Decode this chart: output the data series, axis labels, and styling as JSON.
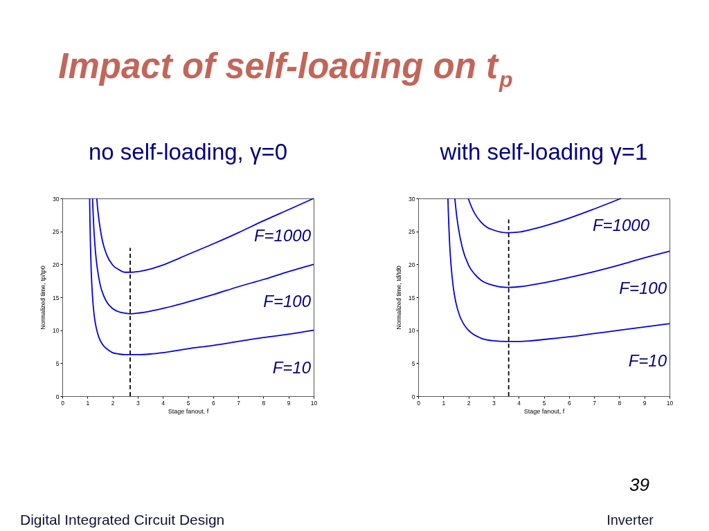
{
  "chart_data": [
    {
      "type": "other",
      "title": "Impact of self-loading on t$_{p}$",
      "annotations": [
        "39",
        "Digital Integrated Circuit Design",
        "Inverter"
      ]
    },
    {
      "type": "line",
      "title": "no self-loading, γ=0",
      "xlabel": "Stage fanout, f",
      "ylabel": "Normalized time, tp/tp0",
      "xlim": [
        0,
        10
      ],
      "ylim": [
        0,
        30
      ],
      "xticks": [
        0,
        1,
        2,
        3,
        4,
        5,
        6,
        7,
        8,
        9,
        10
      ],
      "yticks": [
        0,
        5,
        10,
        15,
        20,
        25,
        30
      ],
      "line_style": "solid",
      "series": [
        {
          "name": "F=1000",
          "color": "#0000e0",
          "x": [
            1.371,
            1.4,
            1.45,
            1.5,
            1.6,
            1.75,
            2,
            2.25,
            2.5,
            2.72,
            3,
            3.5,
            4,
            5,
            6,
            7,
            8,
            9,
            10
          ],
          "values": [
            30.0,
            28.7,
            27.0,
            25.6,
            23.5,
            21.6,
            19.9,
            19.2,
            18.8,
            18.8,
            18.9,
            19.3,
            19.9,
            21.5,
            23.1,
            24.8,
            26.6,
            28.3,
            30.0
          ]
        },
        {
          "name": "F=100",
          "color": "#0000e0",
          "x": [
            1.203,
            1.22,
            1.25,
            1.3,
            1.35,
            1.4,
            1.5,
            1.65,
            1.8,
            2,
            2.25,
            2.5,
            2.72,
            3,
            3.5,
            4,
            5,
            6,
            7,
            8,
            9,
            10
          ],
          "values": [
            30.0,
            28.3,
            25.8,
            22.8,
            20.7,
            19.2,
            17.0,
            15.2,
            14.1,
            13.3,
            12.8,
            12.6,
            12.5,
            12.6,
            12.9,
            13.3,
            14.3,
            15.4,
            16.6,
            17.7,
            18.9,
            20.0
          ]
        },
        {
          "name": "F=10",
          "color": "#0000e0",
          "x": [
            1.087,
            1.1,
            1.12,
            1.15,
            1.2,
            1.25,
            1.3,
            1.4,
            1.5,
            1.65,
            1.8,
            2,
            2.25,
            2.5,
            2.72,
            3,
            3.5,
            4,
            5,
            6,
            7,
            8,
            9,
            10
          ],
          "values": [
            30.0,
            26.6,
            22.8,
            19.0,
            15.2,
            12.9,
            11.4,
            9.6,
            8.5,
            7.6,
            7.1,
            6.6,
            6.4,
            6.3,
            6.3,
            6.3,
            6.4,
            6.6,
            7.2,
            7.7,
            8.3,
            8.9,
            9.4,
            10.0
          ]
        },
        {
          "color": "#000000",
          "line_style": "dashed",
          "x": [
            2.7,
            2.7
          ],
          "values": [
            0,
            22.5
          ]
        }
      ]
    },
    {
      "type": "line",
      "title": "with self-loading γ=1",
      "xlabel": "Stage fanout, f",
      "ylabel": "Normalized time, td/td0",
      "xlim": [
        0,
        10
      ],
      "ylim": [
        0,
        30
      ],
      "xticks": [
        0,
        1,
        2,
        3,
        4,
        5,
        6,
        7,
        8,
        9,
        10
      ],
      "yticks": [
        0,
        5,
        10,
        15,
        20,
        25,
        30
      ],
      "line_style": "solid",
      "series": [
        {
          "name": "F=1000",
          "color": "#0000e0",
          "x": [
            1.99,
            2.1,
            2.25,
            2.5,
            2.75,
            3,
            3.5,
            4,
            4.5,
            5,
            6,
            7,
            8.07
          ],
          "values": [
            30.0,
            28.9,
            27.7,
            26.4,
            25.6,
            25.2,
            24.8,
            24.9,
            25.3,
            25.8,
            27.0,
            28.4,
            30.0
          ]
        },
        {
          "name": "F=100",
          "color": "#0000e0",
          "x": [
            1.458,
            1.5,
            1.55,
            1.6,
            1.75,
            2,
            2.25,
            2.5,
            3,
            3.5,
            4,
            5,
            6,
            7,
            8,
            9,
            10
          ],
          "values": [
            30.0,
            28.4,
            26.8,
            25.5,
            22.6,
            19.9,
            18.5,
            17.6,
            16.8,
            16.5,
            16.6,
            17.2,
            18.0,
            18.9,
            19.9,
            21.0,
            22.0
          ]
        },
        {
          "name": "F=10",
          "color": "#0000e0",
          "x": [
            1.183,
            1.2,
            1.25,
            1.3,
            1.4,
            1.5,
            1.65,
            1.8,
            2,
            2.5,
            3,
            3.5,
            4,
            5,
            6,
            7,
            8,
            9,
            10
          ],
          "values": [
            30.0,
            27.8,
            23.2,
            20.2,
            16.4,
            14.2,
            12.2,
            11.0,
            10.0,
            8.8,
            8.4,
            8.3,
            8.3,
            8.6,
            9.0,
            9.5,
            10.0,
            10.5,
            11.0
          ]
        },
        {
          "color": "#000000",
          "line_style": "dashed",
          "x": [
            3.6,
            3.6
          ],
          "values": [
            0,
            26.8
          ]
        }
      ]
    }
  ]
}
